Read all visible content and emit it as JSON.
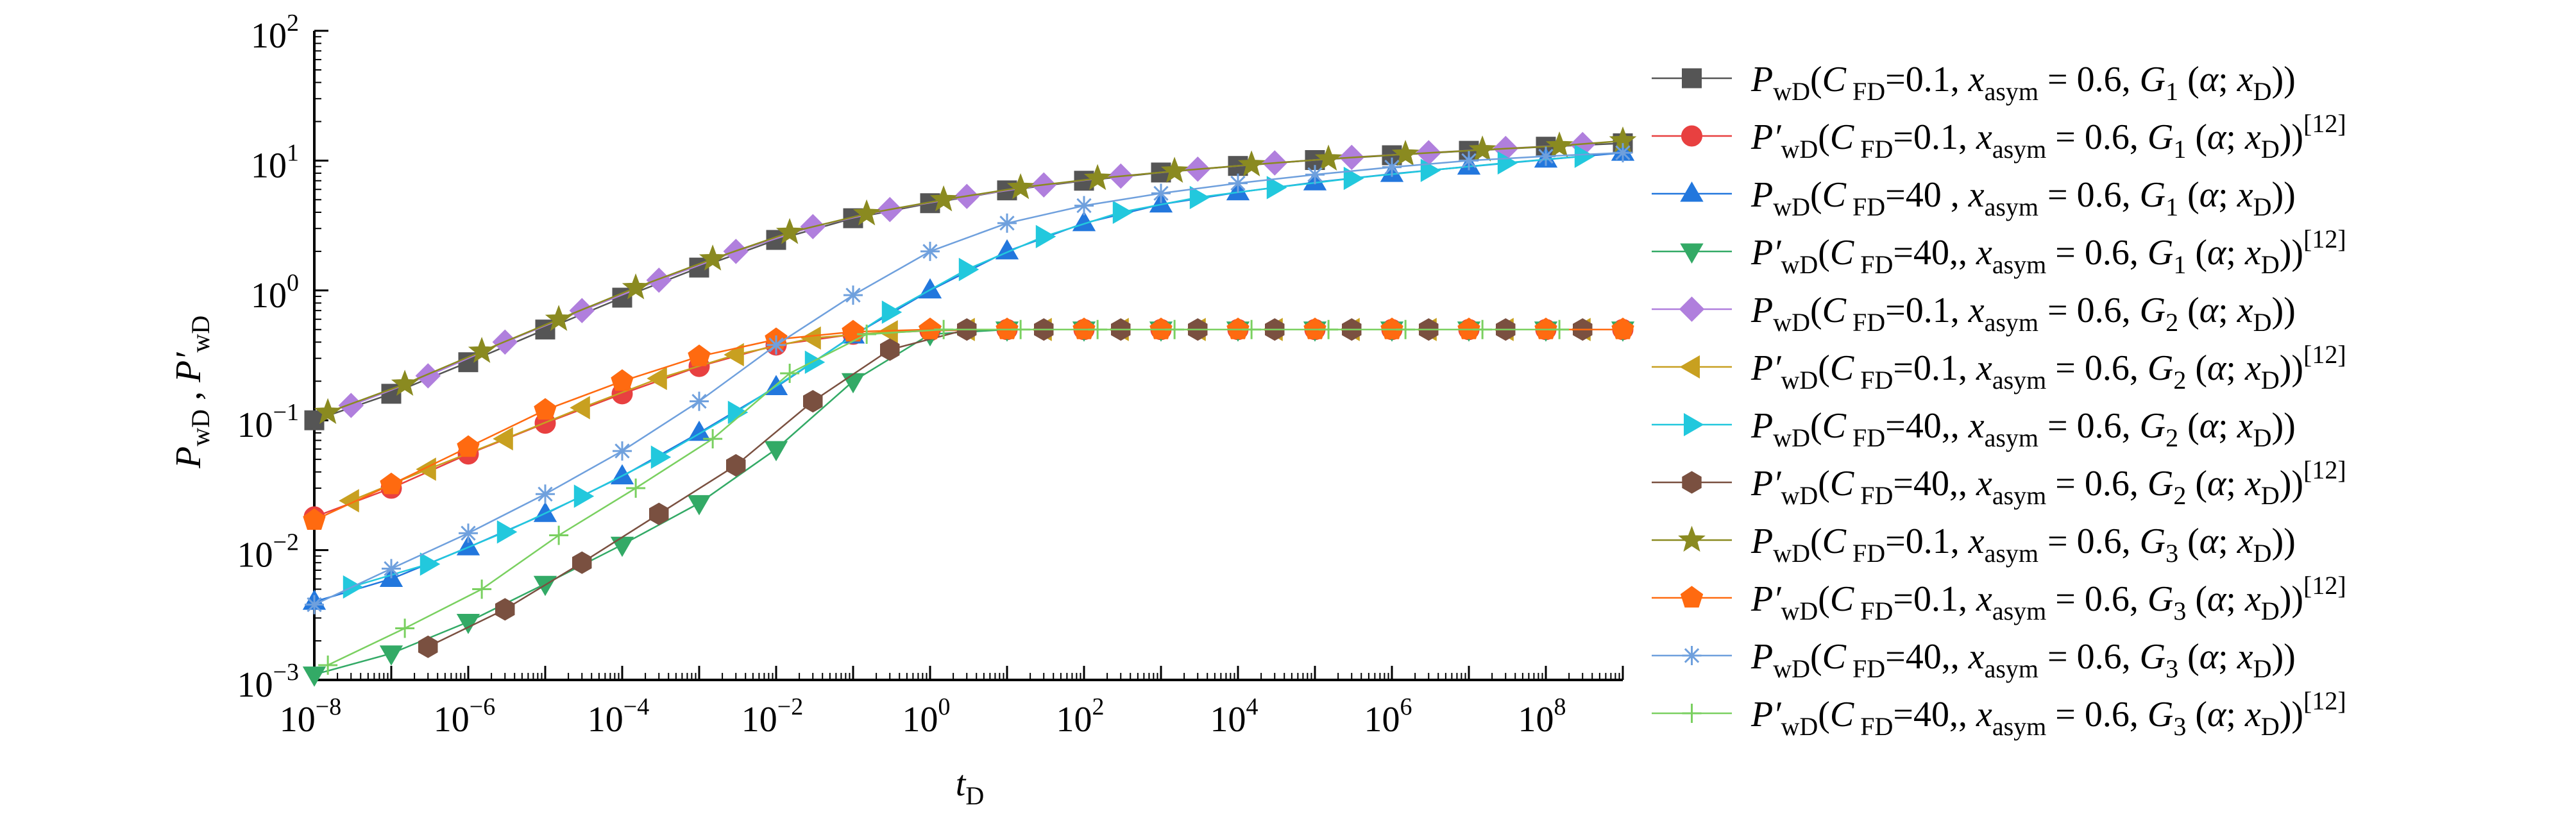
{
  "chart_data": {
    "type": "line",
    "xscale": "log",
    "yscale": "log",
    "xlim": [
      1e-08,
      1000000000.0
    ],
    "ylim": [
      0.001,
      100
    ],
    "grid": false,
    "legend": "right",
    "x_ticks": [
      {
        "base": "10",
        "exp": "−8"
      },
      {
        "base": "10",
        "exp": "−6"
      },
      {
        "base": "10",
        "exp": "−4"
      },
      {
        "base": "10",
        "exp": "−2"
      },
      {
        "base": "10",
        "exp": "0"
      },
      {
        "base": "10",
        "exp": "2"
      },
      {
        "base": "10",
        "exp": "4"
      },
      {
        "base": "10",
        "exp": "6"
      },
      {
        "base": "10",
        "exp": "8"
      }
    ],
    "y_ticks": [
      {
        "base": "10",
        "exp": "−3"
      },
      {
        "base": "10",
        "exp": "−2"
      },
      {
        "base": "10",
        "exp": "−1"
      },
      {
        "base": "10",
        "exp": "0"
      },
      {
        "base": "10",
        "exp": "1"
      },
      {
        "base": "10",
        "exp": "2"
      }
    ],
    "xlabel": {
      "main": "t",
      "sub": "D"
    },
    "ylabel": {
      "p1": "P",
      "s1": "wD",
      "sep": " , ",
      "p2": "P′",
      "s2": "wD"
    },
    "series": [
      {
        "legend": {
          "p": "P",
          "ps": "wD",
          "cfd": "0.1",
          "sp1": "",
          "sp2": " ",
          "gsub": "1",
          "ref": ""
        },
        "color": "#555555",
        "marker": "square",
        "x": [
          1e-08,
          1e-07,
          1e-06,
          1e-05,
          0.0001,
          0.001,
          0.01,
          0.1,
          1,
          10,
          100,
          1000,
          10000,
          100000,
          1000000,
          10000000,
          100000000,
          1000000000
        ],
        "y": [
          0.1,
          0.16,
          0.28,
          0.5,
          0.88,
          1.5,
          2.45,
          3.6,
          4.7,
          5.9,
          7.0,
          8.1,
          9.1,
          10.1,
          11.0,
          11.9,
          12.8,
          13.6
        ]
      },
      {
        "legend": {
          "p": "P′",
          "ps": "wD",
          "cfd": "0.1",
          "sp1": "",
          "sp2": " ",
          "gsub": "1",
          "ref": "[12]"
        },
        "color": "#e84040",
        "marker": "circle",
        "x": [
          1e-08,
          1e-07,
          1e-06,
          1e-05,
          0.0001,
          0.001,
          0.01,
          0.1,
          1,
          10,
          100,
          1000,
          10000,
          100000,
          1000000,
          10000000,
          100000000,
          1000000000
        ],
        "y": [
          0.018,
          0.03,
          0.055,
          0.095,
          0.16,
          0.26,
          0.38,
          0.46,
          0.49,
          0.5,
          0.5,
          0.5,
          0.5,
          0.5,
          0.5,
          0.5,
          0.5,
          0.5
        ]
      },
      {
        "legend": {
          "p": "P",
          "ps": "wD",
          "cfd": "40",
          "sp1": " ",
          "sp2": " ",
          "gsub": "1",
          "ref": ""
        },
        "color": "#2277dd",
        "marker": "triangle-up",
        "x": [
          1e-08,
          1e-07,
          1e-06,
          1e-05,
          0.0001,
          0.001,
          0.01,
          0.1,
          1,
          10,
          100,
          1000,
          10000,
          100000,
          1000000,
          10000000,
          100000000,
          1000000000
        ],
        "y": [
          0.004,
          0.006,
          0.0105,
          0.019,
          0.037,
          0.08,
          0.18,
          0.45,
          1.0,
          2.0,
          3.3,
          4.6,
          5.7,
          6.8,
          7.9,
          9.0,
          10.2,
          11.5
        ]
      },
      {
        "legend": {
          "p": "P′",
          "ps": "wD",
          "cfd": "40,",
          "sp1": "",
          "sp2": " ",
          "gsub": "1",
          "ref": "[12]"
        },
        "color": "#33aa66",
        "marker": "triangle-down",
        "x": [
          1e-08,
          1e-07,
          1e-06,
          1e-05,
          0.0001,
          0.001,
          0.01,
          0.1,
          1,
          10,
          100,
          1000,
          10000,
          100000,
          1000000,
          10000000,
          100000000,
          1000000000
        ],
        "y": [
          0.0011,
          0.0016,
          0.0028,
          0.0055,
          0.011,
          0.023,
          0.06,
          0.2,
          0.46,
          0.5,
          0.5,
          0.5,
          0.5,
          0.5,
          0.5,
          0.5,
          0.5,
          0.5
        ]
      },
      {
        "legend": {
          "p": "P",
          "ps": "wD",
          "cfd": "0.1",
          "sp1": "",
          "sp2": " ",
          "gsub": "2",
          "ref": ""
        },
        "color": "#b07fdd",
        "marker": "diamond",
        "x": [
          3e-08,
          3e-07,
          3e-06,
          3e-05,
          0.0003,
          0.003,
          0.03,
          0.3,
          3,
          30,
          300,
          3000,
          30000,
          300000,
          3000000,
          30000000,
          300000000
        ],
        "y": [
          0.13,
          0.22,
          0.4,
          0.7,
          1.2,
          2.0,
          3.1,
          4.2,
          5.3,
          6.5,
          7.6,
          8.6,
          9.6,
          10.6,
          11.5,
          12.4,
          13.3
        ]
      },
      {
        "legend": {
          "p": "P′",
          "ps": "wD",
          "cfd": "0.1",
          "sp1": "",
          "sp2": " ",
          "gsub": "2",
          "ref": "[12]"
        },
        "color": "#c8a020",
        "marker": "triangle-left",
        "x": [
          3e-08,
          3e-07,
          3e-06,
          3e-05,
          0.0003,
          0.003,
          0.03,
          0.3,
          3,
          30,
          300,
          3000,
          30000,
          300000,
          3000000,
          30000000,
          300000000
        ],
        "y": [
          0.024,
          0.042,
          0.072,
          0.125,
          0.21,
          0.32,
          0.43,
          0.48,
          0.5,
          0.5,
          0.5,
          0.5,
          0.5,
          0.5,
          0.5,
          0.5,
          0.5
        ]
      },
      {
        "legend": {
          "p": "P",
          "ps": "wD",
          "cfd": "40,",
          "sp1": "",
          "sp2": " ",
          "gsub": "2",
          "ref": ""
        },
        "color": "#22c8dd",
        "marker": "triangle-right",
        "x": [
          3e-08,
          3e-07,
          3e-06,
          3e-05,
          0.0003,
          0.003,
          0.03,
          0.3,
          3,
          30,
          300,
          3000,
          30000,
          300000,
          3000000,
          30000000,
          300000000
        ],
        "y": [
          0.0052,
          0.0078,
          0.0138,
          0.026,
          0.052,
          0.115,
          0.28,
          0.68,
          1.45,
          2.6,
          4.0,
          5.2,
          6.2,
          7.3,
          8.4,
          9.6,
          10.8
        ]
      },
      {
        "legend": {
          "p": "P′",
          "ps": "wD",
          "cfd": "40,",
          "sp1": "",
          "sp2": " ",
          "gsub": "2",
          "ref": "[12]"
        },
        "color": "#7a5040",
        "marker": "hexagon",
        "x": [
          3e-07,
          3e-06,
          3e-05,
          0.0003,
          0.003,
          0.03,
          0.3,
          3,
          30,
          300,
          3000,
          30000,
          300000,
          3000000,
          30000000,
          300000000
        ],
        "y": [
          0.0018,
          0.0035,
          0.008,
          0.019,
          0.045,
          0.14,
          0.35,
          0.5,
          0.5,
          0.5,
          0.5,
          0.5,
          0.5,
          0.5,
          0.5,
          0.5
        ]
      },
      {
        "legend": {
          "p": "P",
          "ps": "wD",
          "cfd": "0.1",
          "sp1": "",
          "sp2": " ",
          "gsub": "3",
          "ref": ""
        },
        "color": "#8a8a20",
        "marker": "star",
        "x": [
          1.5e-08,
          1.5e-07,
          1.5e-06,
          1.5e-05,
          0.00015,
          0.0015,
          0.015,
          0.15,
          1.5,
          15,
          150,
          1500,
          15000,
          150000,
          1500000,
          15000000,
          150000000,
          1000000000
        ],
        "y": [
          0.115,
          0.19,
          0.34,
          0.6,
          1.05,
          1.75,
          2.8,
          3.9,
          5.0,
          6.2,
          7.3,
          8.3,
          9.3,
          10.3,
          11.2,
          12.1,
          13.0,
          14.2
        ]
      },
      {
        "legend": {
          "p": "P′",
          "ps": "wD",
          "cfd": "0.1",
          "sp1": "",
          "sp2": " ",
          "gsub": "3",
          "ref": "[12]"
        },
        "color": "#ff6a10",
        "marker": "pentagon",
        "x": [
          1e-08,
          1e-07,
          1e-06,
          1e-05,
          0.0001,
          0.001,
          0.01,
          0.1,
          1,
          10,
          100,
          1000,
          10000,
          100000,
          1000000,
          10000000,
          100000000,
          1000000000
        ],
        "y": [
          0.017,
          0.032,
          0.062,
          0.12,
          0.2,
          0.31,
          0.42,
          0.48,
          0.5,
          0.5,
          0.5,
          0.5,
          0.5,
          0.5,
          0.5,
          0.5,
          0.5,
          0.5
        ]
      },
      {
        "legend": {
          "p": "P",
          "ps": "wD",
          "cfd": "40,",
          "sp1": "",
          "sp2": " ",
          "gsub": "3",
          "ref": ""
        },
        "color": "#6fa0dd",
        "marker": "asterisk",
        "x": [
          1e-08,
          1e-07,
          1e-06,
          1e-05,
          0.0001,
          0.001,
          0.01,
          0.1,
          1,
          10,
          100,
          1000,
          10000,
          100000,
          1000000,
          10000000,
          100000000,
          1000000000
        ],
        "y": [
          0.0038,
          0.0072,
          0.0135,
          0.027,
          0.058,
          0.14,
          0.38,
          0.92,
          2.0,
          3.3,
          4.5,
          5.6,
          6.7,
          7.8,
          8.9,
          10.0,
          10.8,
          11.5
        ]
      },
      {
        "legend": {
          "p": "P′",
          "ps": "wD",
          "cfd": "40,",
          "sp1": "",
          "sp2": " ",
          "gsub": "3",
          "ref": "[12]"
        },
        "color": "#7ad060",
        "marker": "plus",
        "x": [
          1.5e-08,
          1.5e-07,
          1.5e-06,
          1.5e-05,
          0.00015,
          0.0015,
          0.015,
          0.15,
          1.5,
          15,
          150,
          1500,
          15000,
          150000,
          1500000,
          15000000,
          150000000
        ],
        "y": [
          0.0013,
          0.0025,
          0.005,
          0.013,
          0.03,
          0.072,
          0.23,
          0.46,
          0.5,
          0.5,
          0.5,
          0.5,
          0.5,
          0.5,
          0.5,
          0.5,
          0.5
        ]
      }
    ]
  }
}
